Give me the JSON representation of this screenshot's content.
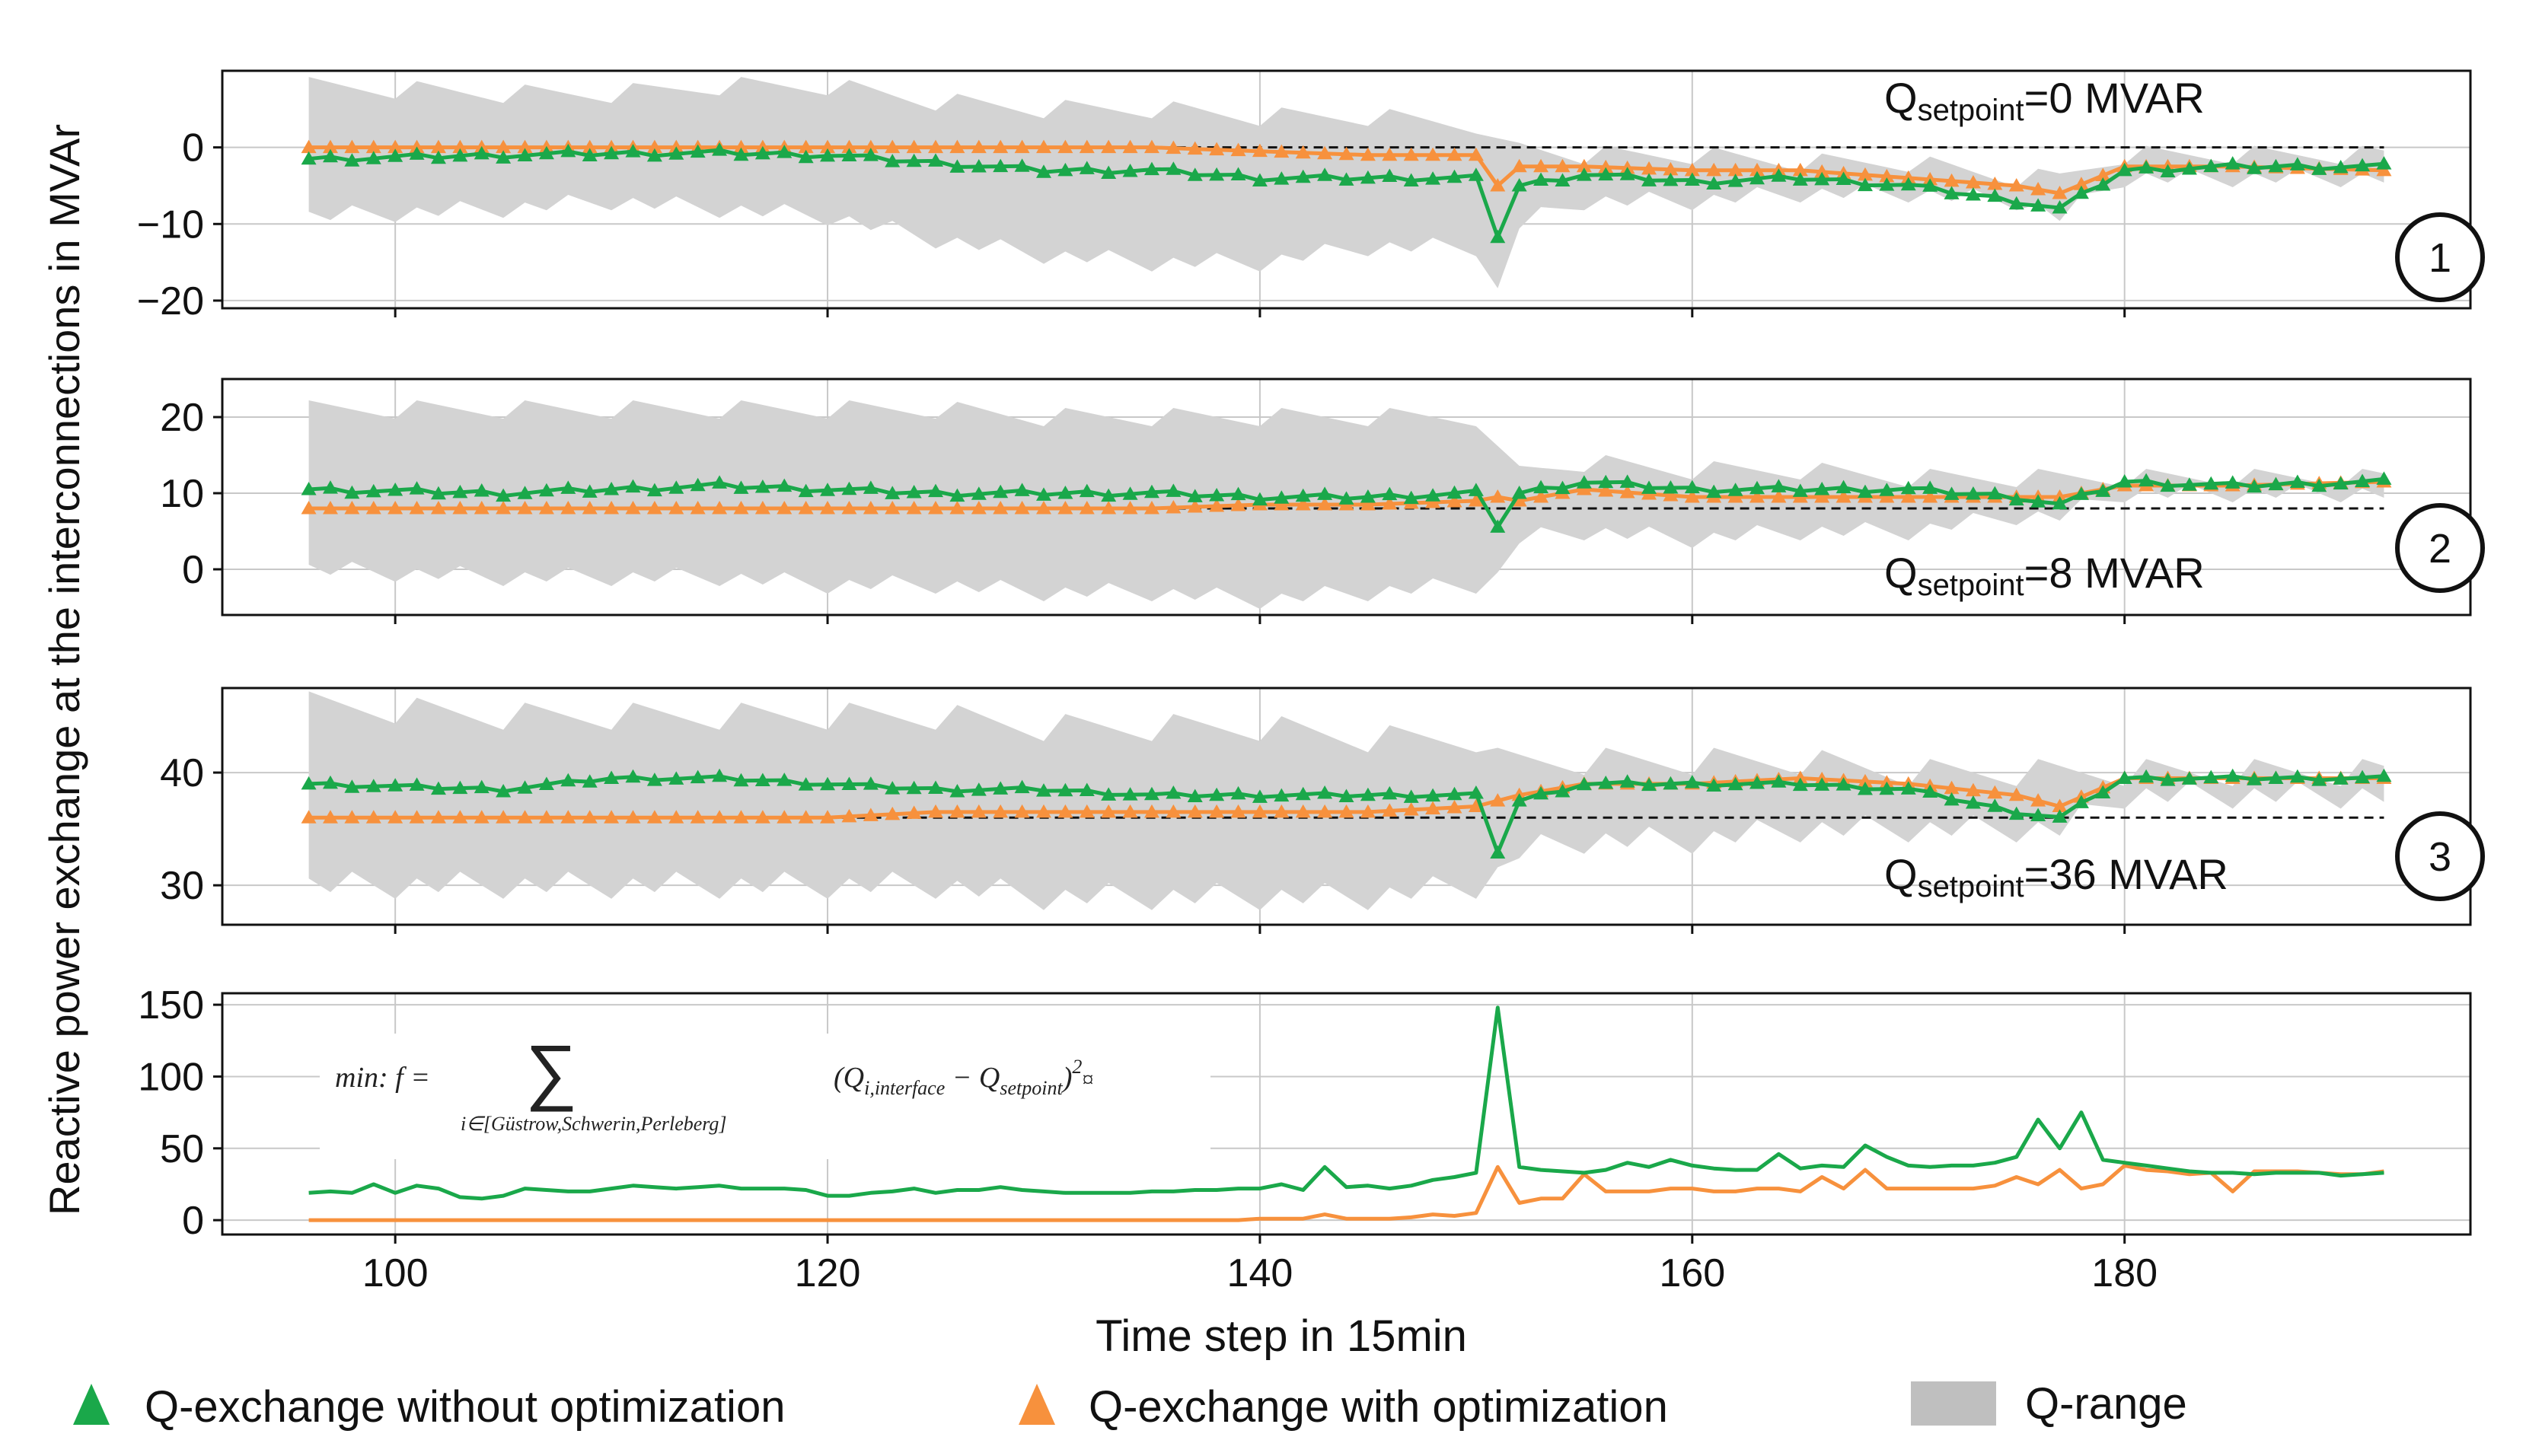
{
  "figure": {
    "ylabel": "Reactive power exchange at the interconnections in MVAr",
    "xlabel": "Time step in 15min",
    "xticks": [
      100,
      120,
      140,
      160,
      180
    ],
    "legend": {
      "without": "Q-exchange without optimization",
      "with": "Q-exchange with optimization",
      "range": "Q-range"
    },
    "colors": {
      "without": "#1aa84a",
      "with": "#f7913d",
      "range": "#d3d3d3",
      "grid": "#c8c8c8"
    }
  },
  "chart_data": [
    {
      "type": "line",
      "panel": "1",
      "badge": "1",
      "setpoint_value": 0,
      "setpoint_label_q": "Q",
      "setpoint_label_sub": "setpoint",
      "setpoint_label_rest": "=0 MVAR",
      "ylim": [
        -21,
        10
      ],
      "yticks": [
        0,
        -10,
        -20
      ],
      "ytick_labels": [
        "0",
        "−10",
        "−20"
      ],
      "xlim": [
        92,
        196
      ],
      "segments": [
        {
          "x": [
            96,
            105,
            110,
            115,
            120,
            125,
            130,
            135,
            140,
            145,
            150,
            151,
            152,
            155,
            160,
            165,
            170,
            175,
            177,
            180,
            185,
            192
          ],
          "without": [
            -1.5,
            -1,
            -0.8,
            -0.7,
            -1,
            -2,
            -3,
            -3,
            -4,
            -4,
            -4,
            -11.5,
            -5,
            -3.5,
            -4.5,
            -4,
            -5,
            -7,
            -8,
            -3,
            -2.5,
            -2.5
          ],
          "with": [
            0,
            0,
            0,
            0,
            0,
            0,
            0,
            0,
            -0.5,
            -1,
            -1,
            -5,
            -2.5,
            -2.5,
            -3,
            -3,
            -4,
            -5,
            -6,
            -2.5,
            -2.5,
            -3
          ],
          "low": [
            -9,
            -8,
            -7,
            -8,
            -9,
            -12,
            -14,
            -15,
            -15,
            -13,
            -13,
            -19,
            -10,
            -7,
            -7,
            -6,
            -6,
            -7,
            -9,
            -4,
            -4,
            -4
          ],
          "high": [
            8,
            7,
            7,
            8,
            8,
            6,
            5,
            5,
            4,
            4,
            3,
            0,
            0,
            -1,
            -1,
            -2,
            -2,
            -4,
            -4,
            -1,
            -1,
            -1
          ]
        }
      ],
      "series": [
        {
          "name": "Q-exchange without optimization",
          "values": []
        },
        {
          "name": "Q-exchange with optimization",
          "values": []
        }
      ]
    },
    {
      "type": "line",
      "panel": "2",
      "badge": "2",
      "setpoint_value": 8,
      "setpoint_label_q": "Q",
      "setpoint_label_sub": "setpoint",
      "setpoint_label_rest": "=8 MVAR",
      "ylim": [
        -6,
        25
      ],
      "yticks": [
        20,
        10,
        0
      ],
      "ytick_labels": [
        "20",
        "10",
        "0"
      ],
      "xlim": [
        92,
        196
      ],
      "segments": [
        {
          "x": [
            96,
            105,
            110,
            115,
            120,
            125,
            130,
            135,
            140,
            145,
            150,
            151,
            152,
            155,
            160,
            165,
            170,
            175,
            177,
            180,
            185,
            192
          ],
          "without": [
            10.5,
            10,
            10.5,
            11,
            10.5,
            10,
            10,
            10,
            9.5,
            9.5,
            10,
            5.8,
            10,
            11.5,
            10.5,
            10.5,
            10.5,
            9.5,
            8.5,
            11.5,
            11,
            11.5
          ],
          "with": [
            8,
            8,
            8,
            8,
            8,
            8,
            8,
            8,
            8.5,
            8.5,
            9,
            9.5,
            9,
            10.5,
            9.5,
            9.5,
            9.5,
            9.5,
            9.5,
            11,
            11,
            11.5
          ],
          "low": [
            0,
            -1,
            -1,
            -1,
            -2,
            -2,
            -3,
            -3,
            -4,
            -3,
            -2,
            -1,
            4,
            5,
            4,
            5,
            5,
            7,
            7,
            10,
            10,
            10
          ],
          "high": [
            21,
            21,
            21,
            21,
            21,
            21,
            20,
            20,
            20,
            20,
            20,
            15,
            13,
            14,
            13,
            13,
            12,
            12,
            12,
            12,
            12,
            12
          ]
        }
      ],
      "series": [
        {
          "name": "Q-exchange without optimization",
          "values": []
        },
        {
          "name": "Q-exchange with optimization",
          "values": []
        }
      ]
    },
    {
      "type": "line",
      "panel": "3",
      "badge": "3",
      "setpoint_value": 36,
      "setpoint_label_q": "Q",
      "setpoint_label_sub": "setpoint",
      "setpoint_label_rest": "=36 MVAR",
      "ylim": [
        26.5,
        47.5
      ],
      "yticks": [
        40,
        30
      ],
      "ytick_labels": [
        "40",
        "30"
      ],
      "xlim": [
        92,
        196
      ],
      "segments": [
        {
          "x": [
            96,
            105,
            110,
            115,
            120,
            125,
            130,
            135,
            140,
            145,
            150,
            151,
            152,
            155,
            160,
            165,
            170,
            175,
            177,
            180,
            185,
            192
          ],
          "without": [
            39,
            38.5,
            39.5,
            39.5,
            39,
            38.5,
            38.5,
            38,
            38,
            38,
            38,
            33,
            37.5,
            39,
            39,
            39,
            38.5,
            36.5,
            36,
            39.5,
            39.5,
            39.5
          ],
          "with": [
            36,
            36,
            36,
            36,
            36,
            36.5,
            36.5,
            36.5,
            36.5,
            36.5,
            37,
            37.5,
            38,
            39,
            39,
            39.5,
            39,
            38,
            37,
            39.5,
            39.5,
            39.5
          ],
          "low": [
            30,
            30,
            30,
            30,
            30,
            30,
            29,
            29,
            29,
            29,
            30,
            31,
            33,
            34,
            34,
            35,
            35,
            35,
            35,
            38,
            38,
            38
          ],
          "high": [
            46,
            45,
            45,
            45,
            45,
            45,
            44,
            44,
            44,
            43,
            43,
            41,
            41,
            41,
            41,
            41,
            40,
            40,
            40,
            40,
            40,
            40
          ]
        }
      ],
      "series": [
        {
          "name": "Q-exchange without optimization",
          "values": []
        },
        {
          "name": "Q-exchange with optimization",
          "values": []
        }
      ]
    },
    {
      "type": "line",
      "panel": "4",
      "ylim": [
        -10,
        158
      ],
      "yticks": [
        150,
        100,
        50,
        0
      ],
      "ytick_labels": [
        "150",
        "100",
        "50",
        "0"
      ],
      "xlim": [
        92,
        196
      ],
      "formula": {
        "lhs": "min: f =",
        "sum": "∑",
        "sub": "i∈[Güstrow,Schwerin,Perleberg]",
        "rhs": "(Q",
        "rhs_sub1": "i,interface",
        "rhs_mid": " − Q",
        "rhs_sub2": "setpoint",
        "rhs_end": ")",
        "sup": "2",
        "tail": "¤"
      },
      "x": [
        96,
        97,
        98,
        99,
        100,
        101,
        102,
        103,
        104,
        105,
        106,
        107,
        108,
        109,
        110,
        111,
        112,
        113,
        114,
        115,
        116,
        117,
        118,
        119,
        120,
        121,
        122,
        123,
        124,
        125,
        126,
        127,
        128,
        129,
        130,
        131,
        132,
        133,
        134,
        135,
        136,
        137,
        138,
        139,
        140,
        141,
        142,
        143,
        144,
        145,
        146,
        147,
        148,
        149,
        150,
        151,
        152,
        153,
        154,
        155,
        156,
        157,
        158,
        159,
        160,
        161,
        162,
        163,
        164,
        165,
        166,
        167,
        168,
        169,
        170,
        171,
        172,
        173,
        174,
        175,
        176,
        177,
        178,
        179,
        180,
        181,
        182,
        183,
        184,
        185,
        186,
        187,
        188,
        189,
        190,
        191,
        192
      ],
      "series": [
        {
          "name": "Q-exchange without optimization",
          "values": [
            19,
            20,
            19,
            25,
            19,
            24,
            22,
            16,
            15,
            17,
            22,
            21,
            20,
            20,
            22,
            24,
            23,
            22,
            23,
            24,
            22,
            22,
            22,
            21,
            17,
            17,
            19,
            20,
            22,
            19,
            21,
            21,
            23,
            21,
            20,
            19,
            19,
            19,
            19,
            20,
            20,
            21,
            21,
            22,
            22,
            25,
            21,
            37,
            23,
            24,
            22,
            24,
            28,
            30,
            33,
            148,
            37,
            35,
            34,
            33,
            35,
            40,
            37,
            42,
            38,
            36,
            35,
            35,
            46,
            36,
            38,
            37,
            52,
            44,
            38,
            37,
            38,
            38,
            40,
            44,
            70,
            50,
            75,
            42,
            40,
            38,
            36,
            34,
            33,
            33,
            32,
            33,
            33,
            33,
            31,
            32,
            33
          ]
        },
        {
          "name": "Q-exchange with optimization",
          "values": [
            0,
            0,
            0,
            0,
            0,
            0,
            0,
            0,
            0,
            0,
            0,
            0,
            0,
            0,
            0,
            0,
            0,
            0,
            0,
            0,
            0,
            0,
            0,
            0,
            0,
            0,
            0,
            0,
            0,
            0,
            0,
            0,
            0,
            0,
            0,
            0,
            0,
            0,
            0,
            0,
            0,
            0,
            0,
            0,
            1,
            1,
            1,
            4,
            1,
            1,
            1,
            2,
            4,
            3,
            5,
            37,
            12,
            15,
            15,
            32,
            20,
            20,
            20,
            22,
            22,
            20,
            20,
            22,
            22,
            20,
            30,
            22,
            35,
            22,
            22,
            22,
            22,
            22,
            24,
            30,
            25,
            35,
            22,
            25,
            38,
            35,
            34,
            32,
            33,
            20,
            34,
            34,
            34,
            33,
            32,
            32,
            34
          ]
        }
      ]
    }
  ]
}
